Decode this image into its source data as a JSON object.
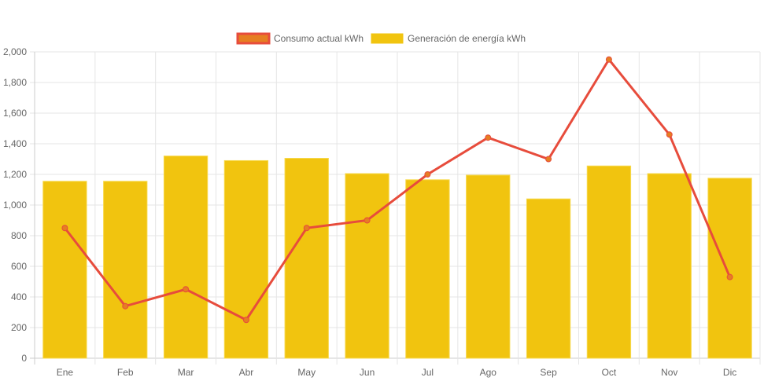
{
  "chart_data": {
    "type": "bar",
    "title": "",
    "xlabel": "",
    "ylabel": "",
    "ylim": [
      0,
      2000
    ],
    "ytick_step": 200,
    "grid": true,
    "legend_position": "top-center",
    "categories": [
      "Ene",
      "Feb",
      "Mar",
      "Abr",
      "May",
      "Jun",
      "Jul",
      "Ago",
      "Sep",
      "Oct",
      "Nov",
      "Dic"
    ],
    "yticks": [
      "0",
      "200",
      "400",
      "600",
      "800",
      "1,000",
      "1,200",
      "1,400",
      "1,600",
      "1,800",
      "2,000"
    ],
    "series": [
      {
        "name": "Consumo actual kWh",
        "type": "line",
        "color": "#e74c3c",
        "point_color": "#e67e22",
        "values": [
          850,
          340,
          450,
          250,
          850,
          900,
          1200,
          1440,
          1300,
          1950,
          1460,
          530
        ]
      },
      {
        "name": "Generación de energía kWh",
        "type": "bar",
        "color": "#f1c40f",
        "values": [
          1155,
          1155,
          1320,
          1290,
          1305,
          1205,
          1165,
          1195,
          1040,
          1255,
          1205,
          1175
        ]
      }
    ]
  }
}
